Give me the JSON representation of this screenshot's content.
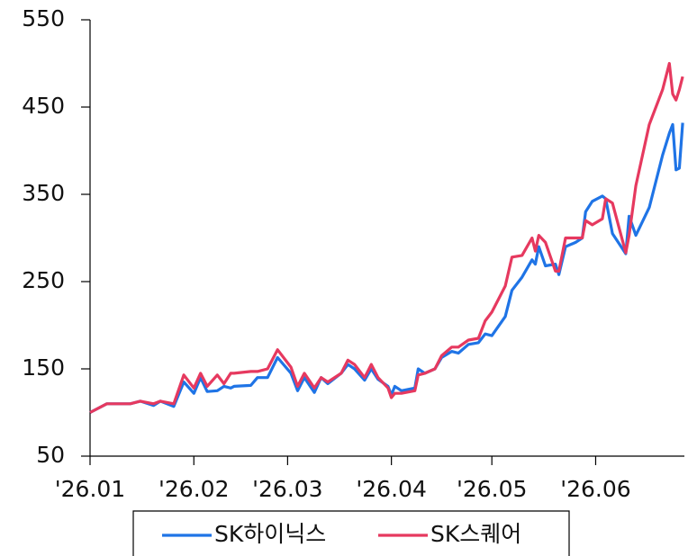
{
  "chart_data": {
    "type": "line",
    "x": [
      0,
      5,
      12,
      15,
      19,
      21,
      25,
      28,
      31,
      33,
      35,
      38,
      40,
      42,
      43,
      48,
      50,
      53,
      56,
      60,
      62,
      64,
      67,
      69,
      71,
      75,
      77,
      79,
      82,
      84,
      86,
      89,
      90,
      91,
      93,
      97,
      98,
      100,
      103,
      105,
      108,
      110,
      113,
      116,
      118,
      120,
      124,
      126,
      129,
      132,
      133,
      134,
      136,
      139,
      140,
      142,
      145,
      147,
      148,
      150,
      153,
      154,
      156,
      160,
      161,
      163,
      167,
      171,
      173,
      174,
      175,
      176,
      177
    ],
    "series": [
      {
        "name": "SK하이닉스",
        "color": "#1f74e6",
        "values": [
          100,
          110,
          110,
          113,
          108,
          113,
          107,
          135,
          122,
          140,
          124,
          125,
          130,
          128,
          130,
          131,
          140,
          140,
          163,
          145,
          125,
          140,
          123,
          140,
          133,
          145,
          155,
          150,
          137,
          150,
          138,
          130,
          120,
          130,
          125,
          128,
          150,
          145,
          150,
          163,
          170,
          168,
          178,
          180,
          190,
          188,
          210,
          240,
          255,
          275,
          270,
          290,
          268,
          270,
          258,
          290,
          295,
          300,
          330,
          342,
          348,
          345,
          305,
          282,
          325,
          303,
          335,
          395,
          420,
          430,
          378,
          380,
          432
        ]
      },
      {
        "name": "SK스퀘어",
        "color": "#e6395f",
        "values": [
          100,
          110,
          110,
          113,
          110,
          113,
          110,
          143,
          128,
          145,
          130,
          143,
          133,
          145,
          145,
          147,
          147,
          150,
          172,
          152,
          130,
          145,
          128,
          140,
          135,
          145,
          160,
          155,
          140,
          155,
          140,
          128,
          117,
          122,
          122,
          125,
          143,
          145,
          150,
          165,
          175,
          175,
          183,
          185,
          205,
          215,
          245,
          278,
          280,
          300,
          285,
          303,
          295,
          262,
          262,
          300,
          300,
          300,
          320,
          315,
          322,
          345,
          340,
          283,
          303,
          360,
          430,
          470,
          500,
          465,
          458,
          470,
          485
        ]
      }
    ],
    "xlim": [
      0,
      177.5
    ],
    "xticks": [
      {
        "value": 0,
        "label": "'26.01"
      },
      {
        "value": 31,
        "label": "'26.02"
      },
      {
        "value": 59,
        "label": "'26.03"
      },
      {
        "value": 90,
        "label": "'26.04"
      },
      {
        "value": 120,
        "label": "'26.05"
      },
      {
        "value": 151,
        "label": "'26.06"
      }
    ],
    "ylim": [
      50,
      550
    ],
    "yticks": [
      50,
      150,
      250,
      350,
      450,
      550
    ],
    "grid": false,
    "legend": "bottom"
  }
}
